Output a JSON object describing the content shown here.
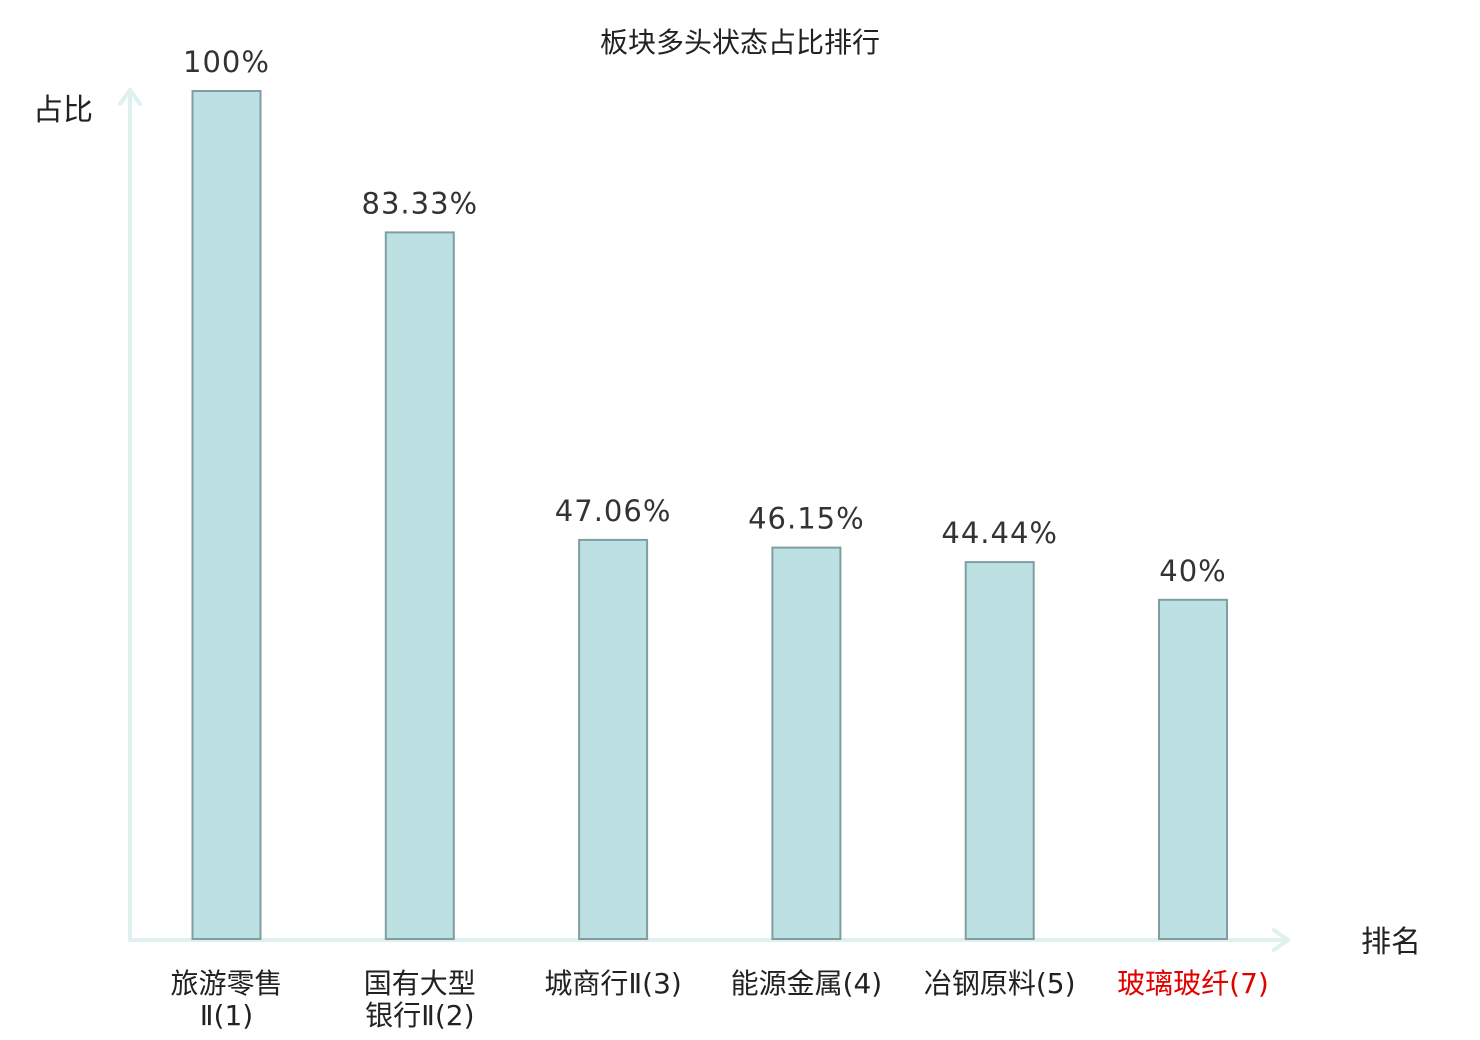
{
  "chart_data": {
    "type": "bar",
    "title": "板块多头状态占比排行",
    "ylabel": "占比",
    "xlabel": "排名",
    "ylim": [
      0,
      100
    ],
    "grid": false,
    "legend": "none",
    "bar_fill": "#bde0e2",
    "bar_stroke": "#7f9ea2",
    "axis_color": "#dff1ee",
    "highlight_color": "#e00000",
    "categories": [
      {
        "lines": [
          "旅游零售",
          "Ⅱ(1)"
        ],
        "highlight": false
      },
      {
        "lines": [
          "国有大型",
          "银行Ⅱ(2)"
        ],
        "highlight": false
      },
      {
        "lines": [
          "城商行Ⅱ(3)"
        ],
        "highlight": false
      },
      {
        "lines": [
          "能源金属(4)"
        ],
        "highlight": false
      },
      {
        "lines": [
          "冶钢原料(5)"
        ],
        "highlight": false
      },
      {
        "lines": [
          "玻璃玻纤(7)"
        ],
        "highlight": true
      }
    ],
    "values": [
      100,
      83.33,
      47.06,
      46.15,
      44.44,
      40
    ],
    "value_labels": [
      "100%",
      "83.33%",
      "47.06%",
      "46.15%",
      "44.44%",
      "40%"
    ]
  }
}
